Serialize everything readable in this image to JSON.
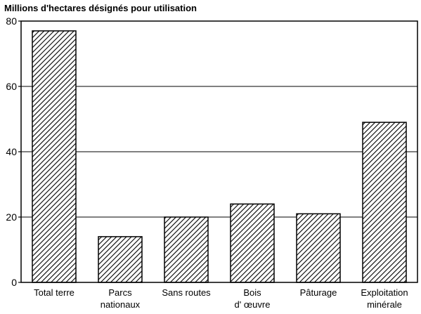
{
  "chart_data": {
    "type": "bar",
    "ylabel": "Millions d'hectares désignés pour utilisation",
    "xlabel": "",
    "title": "",
    "ylim": [
      0,
      80
    ],
    "yticks": [
      0,
      20,
      40,
      60,
      80
    ],
    "grid": true,
    "categories": [
      [
        "Total terre"
      ],
      [
        "Parcs",
        "nationaux"
      ],
      [
        "Sans routes"
      ],
      [
        "Bois",
        "d' œuvre"
      ],
      [
        "Pâturage"
      ],
      [
        "Exploitation",
        "minérale"
      ]
    ],
    "values": [
      77,
      14,
      20,
      24,
      21,
      49
    ],
    "colors": {
      "bar_fill": "hatched",
      "stroke": "#000000",
      "background": "#ffffff"
    }
  }
}
